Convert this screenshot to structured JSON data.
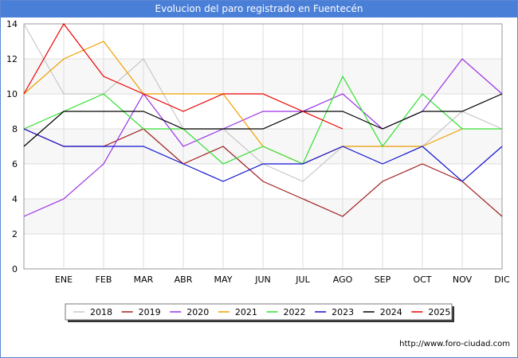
{
  "chart_data": {
    "type": "line",
    "title": "Evolucion del paro registrado en Fuentecén",
    "categories": [
      "",
      "ENE",
      "FEB",
      "MAR",
      "ABR",
      "MAY",
      "JUN",
      "JUL",
      "AGO",
      "SEP",
      "OCT",
      "NOV",
      "DIC"
    ],
    "ylim": [
      0,
      14
    ],
    "yticks": [
      "0",
      "2",
      "4",
      "6",
      "8",
      "10",
      "12",
      "14"
    ],
    "grid": true,
    "legend_position": "bottom",
    "series": [
      {
        "name": "2018",
        "color": "#c8c8c8",
        "values": [
          14,
          10,
          10,
          12,
          8,
          8,
          6,
          5,
          7,
          7,
          7,
          9,
          8
        ]
      },
      {
        "name": "2019",
        "color": "#a02020",
        "values": [
          8,
          7,
          7,
          8,
          6,
          7,
          5,
          4,
          3,
          5,
          6,
          5,
          3
        ]
      },
      {
        "name": "2020",
        "color": "#9a32e6",
        "values": [
          3,
          4,
          6,
          10,
          7,
          8,
          9,
          9,
          10,
          8,
          9,
          12,
          10
        ]
      },
      {
        "name": "2021",
        "color": "#f0a000",
        "values": [
          10,
          12,
          13,
          10,
          10,
          10,
          7,
          6,
          7,
          7,
          7,
          8,
          null
        ]
      },
      {
        "name": "2022",
        "color": "#30e030",
        "values": [
          8,
          9,
          10,
          8,
          8,
          6,
          7,
          6,
          11,
          7,
          10,
          8,
          8
        ]
      },
      {
        "name": "2023",
        "color": "#1010d0",
        "values": [
          8,
          7,
          7,
          7,
          6,
          5,
          6,
          6,
          7,
          6,
          7,
          5,
          7
        ]
      },
      {
        "name": "2024",
        "color": "#000000",
        "values": [
          7,
          9,
          9,
          9,
          8,
          8,
          8,
          9,
          9,
          8,
          9,
          9,
          10
        ]
      },
      {
        "name": "2025",
        "color": "#ee0000",
        "values": [
          10,
          14,
          11,
          10,
          9,
          10,
          10,
          9,
          8,
          null,
          null,
          null,
          null
        ]
      }
    ]
  },
  "footer": "http://www.foro-ciudad.com"
}
